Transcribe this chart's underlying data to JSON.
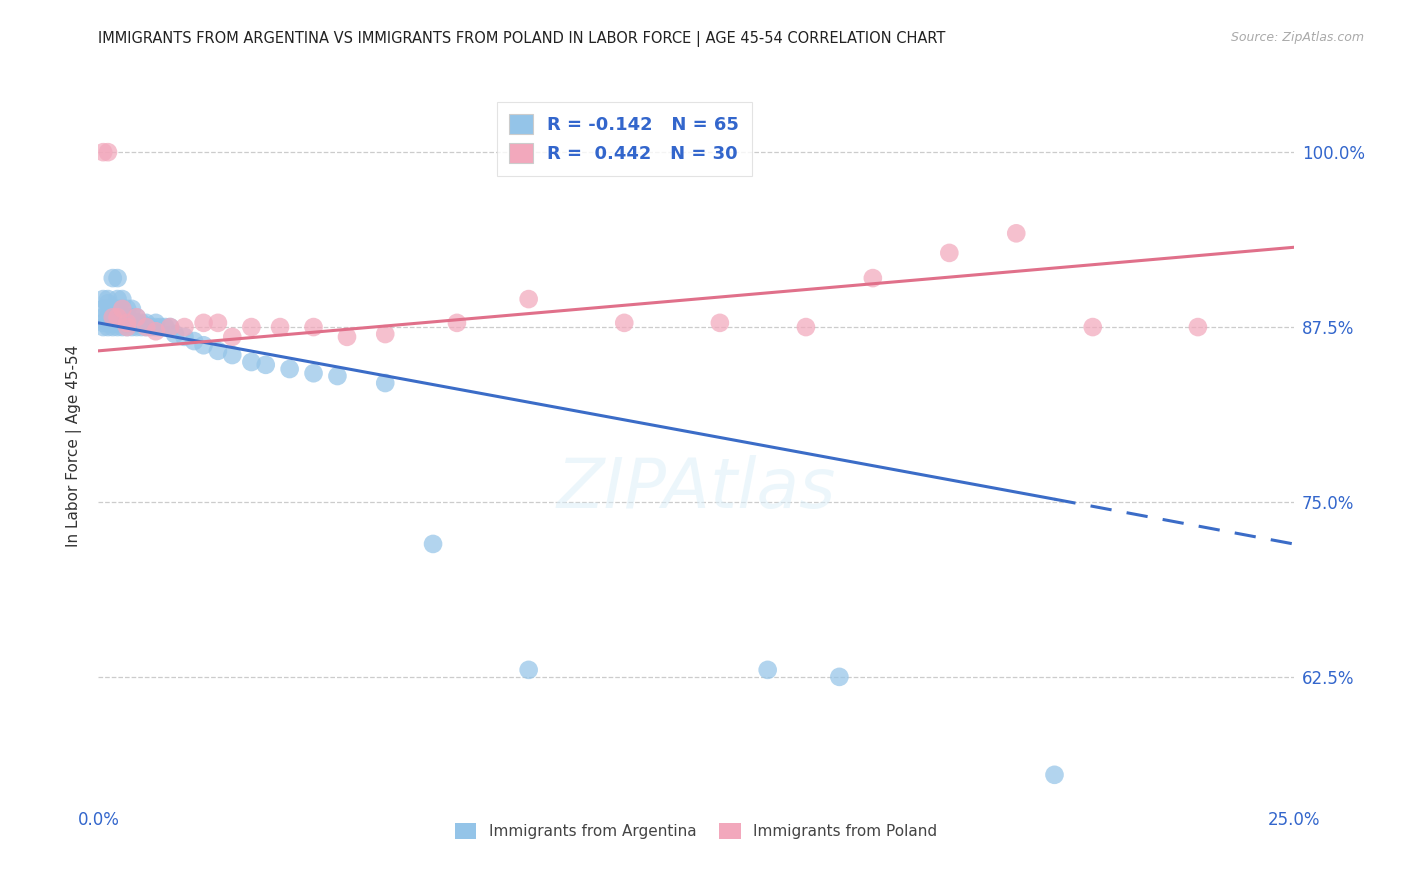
{
  "title": "IMMIGRANTS FROM ARGENTINA VS IMMIGRANTS FROM POLAND IN LABOR FORCE | AGE 45-54 CORRELATION CHART",
  "source": "Source: ZipAtlas.com",
  "ylabel": "In Labor Force | Age 45-54",
  "yticks": [
    0.625,
    0.75,
    0.875,
    1.0
  ],
  "ytick_labels": [
    "62.5%",
    "75.0%",
    "87.5%",
    "100.0%"
  ],
  "xlim": [
    0.0,
    0.25
  ],
  "ylim": [
    0.535,
    1.045
  ],
  "legend1_r": "-0.142",
  "legend1_n": "65",
  "legend2_r": "0.442",
  "legend2_n": "30",
  "color_argentina": "#94C4E8",
  "color_poland": "#F2A8BC",
  "color_argentina_line": "#3B6CC7",
  "color_poland_line": "#E0708A",
  "argentina_x": [
    0.001,
    0.001,
    0.001,
    0.001,
    0.001,
    0.002,
    0.002,
    0.002,
    0.002,
    0.002,
    0.002,
    0.003,
    0.003,
    0.003,
    0.003,
    0.003,
    0.004,
    0.004,
    0.004,
    0.004,
    0.004,
    0.004,
    0.005,
    0.005,
    0.005,
    0.005,
    0.005,
    0.006,
    0.006,
    0.006,
    0.006,
    0.007,
    0.007,
    0.007,
    0.007,
    0.008,
    0.008,
    0.008,
    0.009,
    0.009,
    0.01,
    0.01,
    0.011,
    0.012,
    0.012,
    0.013,
    0.014,
    0.015,
    0.016,
    0.018,
    0.02,
    0.022,
    0.025,
    0.028,
    0.032,
    0.035,
    0.04,
    0.045,
    0.05,
    0.06,
    0.07,
    0.09,
    0.14,
    0.155,
    0.2
  ],
  "argentina_y": [
    0.875,
    0.878,
    0.882,
    0.888,
    0.895,
    0.875,
    0.878,
    0.882,
    0.888,
    0.892,
    0.895,
    0.875,
    0.878,
    0.882,
    0.888,
    0.91,
    0.875,
    0.878,
    0.882,
    0.888,
    0.895,
    0.91,
    0.875,
    0.878,
    0.882,
    0.888,
    0.895,
    0.875,
    0.878,
    0.882,
    0.888,
    0.875,
    0.878,
    0.882,
    0.888,
    0.875,
    0.878,
    0.882,
    0.875,
    0.878,
    0.875,
    0.878,
    0.875,
    0.875,
    0.878,
    0.875,
    0.875,
    0.875,
    0.87,
    0.868,
    0.865,
    0.862,
    0.858,
    0.855,
    0.85,
    0.848,
    0.845,
    0.842,
    0.84,
    0.835,
    0.72,
    0.63,
    0.63,
    0.625,
    0.555
  ],
  "poland_x": [
    0.001,
    0.002,
    0.003,
    0.004,
    0.005,
    0.006,
    0.006,
    0.008,
    0.01,
    0.012,
    0.015,
    0.018,
    0.022,
    0.025,
    0.028,
    0.032,
    0.038,
    0.045,
    0.052,
    0.06,
    0.075,
    0.09,
    0.11,
    0.13,
    0.148,
    0.162,
    0.178,
    0.192,
    0.208,
    0.23
  ],
  "poland_y": [
    1.0,
    1.0,
    0.882,
    0.882,
    0.888,
    0.875,
    0.878,
    0.882,
    0.875,
    0.872,
    0.875,
    0.875,
    0.878,
    0.878,
    0.868,
    0.875,
    0.875,
    0.875,
    0.868,
    0.87,
    0.878,
    0.895,
    0.878,
    0.878,
    0.875,
    0.91,
    0.928,
    0.942,
    0.875,
    0.875
  ],
  "line_arg_x0": 0.0,
  "line_arg_y0": 0.878,
  "line_arg_x1": 0.2,
  "line_arg_y1": 0.752,
  "line_arg_dash_x1": 0.25,
  "line_arg_dash_y1": 0.72,
  "line_pol_x0": 0.0,
  "line_pol_y0": 0.858,
  "line_pol_x1": 0.25,
  "line_pol_y1": 0.932
}
